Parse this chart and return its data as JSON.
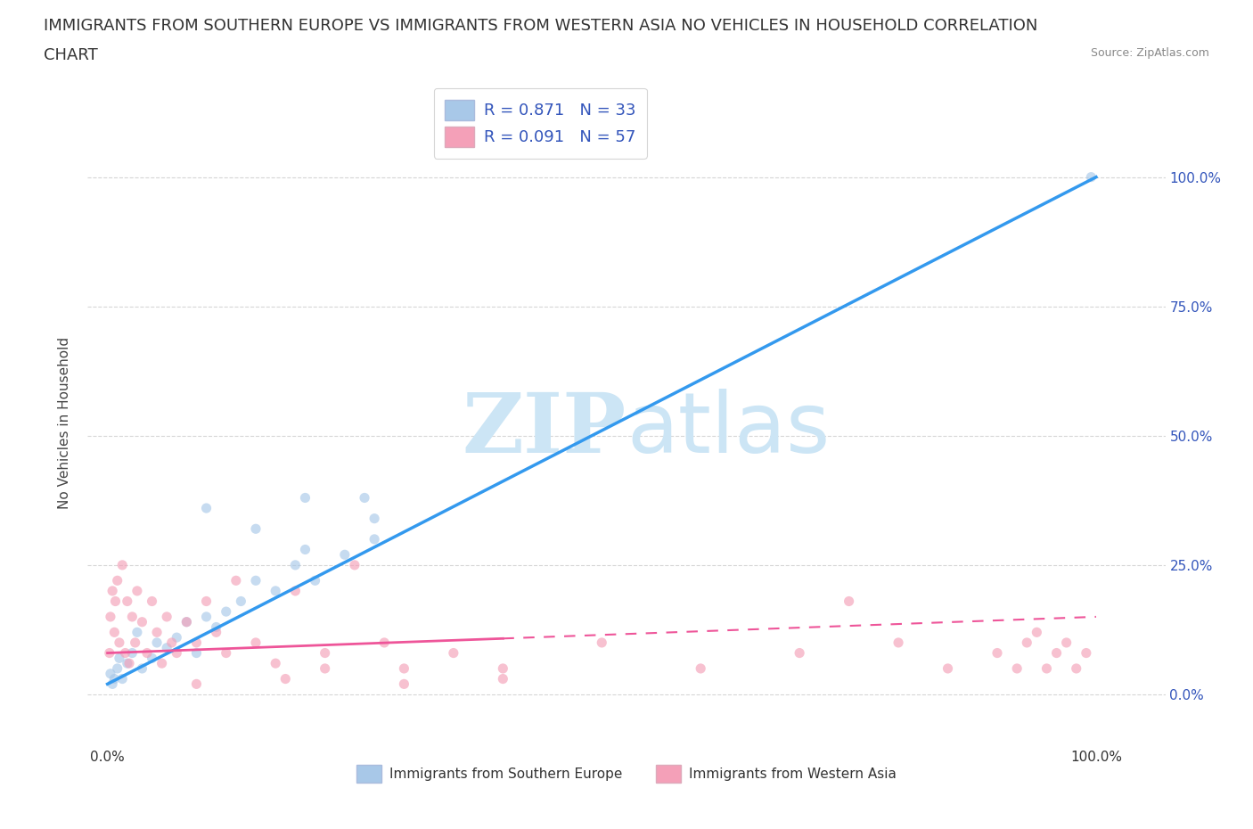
{
  "title_line1": "IMMIGRANTS FROM SOUTHERN EUROPE VS IMMIGRANTS FROM WESTERN ASIA NO VEHICLES IN HOUSEHOLD CORRELATION",
  "title_line2": "CHART",
  "source_text": "Source: ZipAtlas.com",
  "ylabel": "No Vehicles in Household",
  "R1": 0.871,
  "R2": 0.091,
  "N1": 33,
  "N2": 57,
  "color1": "#a8c8e8",
  "color2": "#f4a0b8",
  "line_color1": "#3399ee",
  "line_color2": "#ee5599",
  "tick_color": "#3355bb",
  "watermark_color": "#cce5f5",
  "background_color": "#ffffff",
  "title_fontsize": 13,
  "axis_label_fontsize": 11,
  "tick_fontsize": 11,
  "scatter_size": 65,
  "scatter_alpha": 0.65,
  "legend_label1": "R = 0.871   N = 33",
  "legend_label2": "R = 0.091   N = 57",
  "legend_series1": "Immigrants from Southern Europe",
  "legend_series2": "Immigrants from Western Asia",
  "s1_x": [
    0.3,
    0.5,
    0.7,
    1.0,
    1.2,
    1.5,
    2.0,
    2.5,
    3.0,
    3.5,
    4.5,
    5.0,
    6.0,
    7.0,
    8.0,
    9.0,
    10.0,
    11.0,
    12.0,
    13.5,
    15.0,
    17.0,
    19.0,
    21.0,
    24.0,
    27.0,
    10.0,
    15.0,
    20.0,
    20.0,
    26.0,
    27.0,
    99.5
  ],
  "s1_y": [
    4.0,
    2.0,
    3.0,
    5.0,
    7.0,
    3.0,
    6.0,
    8.0,
    12.0,
    5.0,
    7.0,
    10.0,
    9.0,
    11.0,
    14.0,
    8.0,
    15.0,
    13.0,
    16.0,
    18.0,
    22.0,
    20.0,
    25.0,
    22.0,
    27.0,
    30.0,
    36.0,
    32.0,
    38.0,
    28.0,
    38.0,
    34.0,
    100.0
  ],
  "s2_x": [
    0.2,
    0.3,
    0.5,
    0.7,
    0.8,
    1.0,
    1.2,
    1.5,
    1.8,
    2.0,
    2.2,
    2.5,
    2.8,
    3.0,
    3.5,
    4.0,
    4.5,
    5.0,
    5.5,
    6.0,
    6.5,
    7.0,
    8.0,
    9.0,
    10.0,
    11.0,
    12.0,
    13.0,
    15.0,
    17.0,
    19.0,
    22.0,
    25.0,
    28.0,
    30.0,
    35.0,
    40.0,
    50.0,
    60.0,
    70.0,
    75.0,
    80.0,
    85.0,
    90.0,
    92.0,
    93.0,
    94.0,
    95.0,
    96.0,
    97.0,
    98.0,
    99.0,
    9.0,
    18.0,
    22.0,
    30.0,
    40.0
  ],
  "s2_y": [
    8.0,
    15.0,
    20.0,
    12.0,
    18.0,
    22.0,
    10.0,
    25.0,
    8.0,
    18.0,
    6.0,
    15.0,
    10.0,
    20.0,
    14.0,
    8.0,
    18.0,
    12.0,
    6.0,
    15.0,
    10.0,
    8.0,
    14.0,
    10.0,
    18.0,
    12.0,
    8.0,
    22.0,
    10.0,
    6.0,
    20.0,
    8.0,
    25.0,
    10.0,
    5.0,
    8.0,
    5.0,
    10.0,
    5.0,
    8.0,
    18.0,
    10.0,
    5.0,
    8.0,
    5.0,
    10.0,
    12.0,
    5.0,
    8.0,
    10.0,
    5.0,
    8.0,
    2.0,
    3.0,
    5.0,
    2.0,
    3.0
  ]
}
